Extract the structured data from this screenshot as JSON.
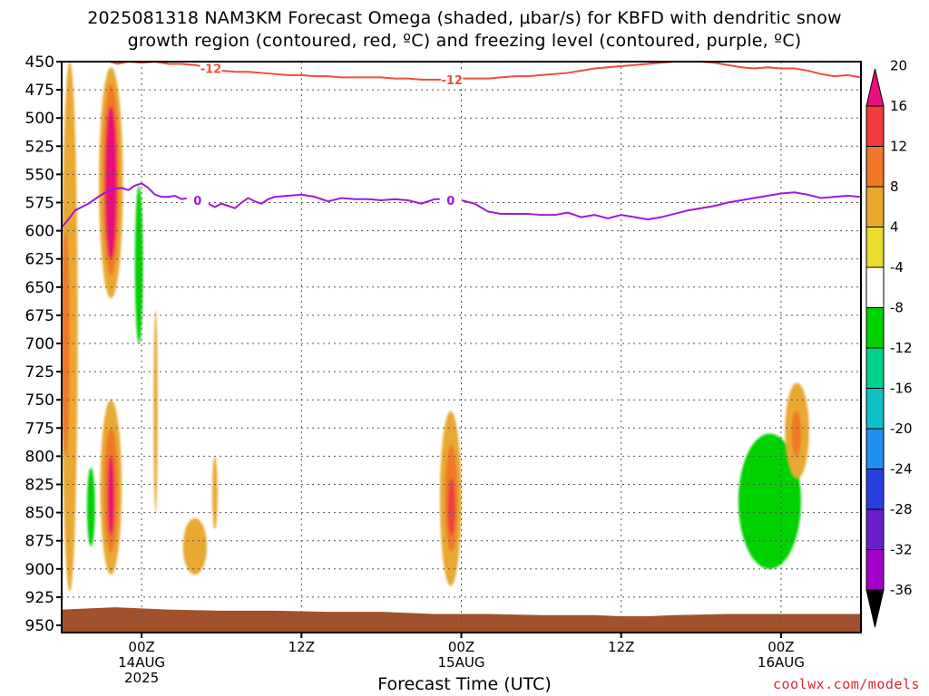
{
  "header": {
    "title_line1": "2025081318 NAM3KM Forecast Omega (shaded, µbar/s) for KBFD with dendritic snow",
    "title_line2": "growth region (contoured, red, ºC) and freezing level (contoured, purple, ºC)"
  },
  "footer": {
    "credit": "coolwx.com/models"
  },
  "colors": {
    "background": "#ffffff",
    "frame": "#000000",
    "grid": "#555555",
    "terrain": "#a0522d",
    "dgz_contour": "#f24b3c",
    "freezing_contour": "#9d19d8"
  },
  "chart_data": {
    "type": "heatmap",
    "title": "2025081318 NAM3KM Forecast Omega (shaded, µbar/s) for KBFD with dendritic snow growth region (contoured, red, ºC) and freezing level (contoured, purple, ºC)",
    "xlabel": "Forecast Time (UTC)",
    "ylabel": "",
    "x_unit": "hours since 2025-08-13 18Z",
    "xlim": [
      0,
      60
    ],
    "ylim": [
      450,
      950
    ],
    "y_scale": "pressure (inverted)",
    "grid": true,
    "y_ticks": [
      450,
      475,
      500,
      525,
      550,
      575,
      600,
      625,
      650,
      675,
      700,
      725,
      750,
      775,
      800,
      825,
      850,
      875,
      900,
      925,
      950
    ],
    "x_ticks": [
      {
        "x": 6,
        "lines": [
          "00Z",
          "14AUG",
          "2025"
        ]
      },
      {
        "x": 18,
        "lines": [
          "12Z"
        ]
      },
      {
        "x": 30,
        "lines": [
          "00Z",
          "15AUG"
        ]
      },
      {
        "x": 42,
        "lines": [
          "12Z"
        ]
      },
      {
        "x": 54,
        "lines": [
          "00Z",
          "16AUG"
        ]
      }
    ],
    "colorbar": {
      "boundaries": [
        -36,
        -32,
        -28,
        -24,
        -20,
        -16,
        -12,
        -8,
        -4,
        4,
        8,
        12,
        16,
        20
      ],
      "labels": [
        "-36",
        "-32",
        "-28",
        "-24",
        "-20",
        "-16",
        "-12",
        "-8",
        "-4",
        "4",
        "8",
        "12",
        "16",
        "20"
      ],
      "colors": [
        "#9b9b9b",
        "#a300c8",
        "#6a1ec8",
        "#2a3fe0",
        "#1f90f0",
        "#10c0c8",
        "#00d28c",
        "#00d200",
        "#ffffff",
        "#e8dc30",
        "#e8a830",
        "#f07828",
        "#f03c3c",
        "#e8107c"
      ],
      "extend": "both"
    },
    "omega_cells": [
      {
        "x": [
          0.0,
          1.2
        ],
        "p": [
          450,
          920
        ],
        "value": 5,
        "note": "yellow column"
      },
      {
        "x": [
          0.0,
          0.6
        ],
        "p": [
          600,
          800
        ],
        "value": 9
      },
      {
        "x": [
          2.8,
          4.6
        ],
        "p": [
          455,
          660
        ],
        "value": 6
      },
      {
        "x": [
          3.1,
          4.3
        ],
        "p": [
          470,
          640
        ],
        "value": 10
      },
      {
        "x": [
          3.3,
          4.1
        ],
        "p": [
          490,
          625
        ],
        "value": 18
      },
      {
        "x": [
          5.0,
          6.3
        ],
        "p": [
          452,
          790
        ],
        "value": -6
      },
      {
        "x": [
          5.5,
          6.1
        ],
        "p": [
          560,
          700
        ],
        "value": -10
      },
      {
        "x": [
          6.9,
          7.2
        ],
        "p": [
          670,
          850
        ],
        "value": 5
      },
      {
        "x": [
          1.6,
          2.8
        ],
        "p": [
          780,
          925
        ],
        "value": -6
      },
      {
        "x": [
          1.9,
          2.5
        ],
        "p": [
          810,
          880
        ],
        "value": -12
      },
      {
        "x": [
          2.9,
          4.5
        ],
        "p": [
          750,
          905
        ],
        "value": 6
      },
      {
        "x": [
          3.2,
          4.2
        ],
        "p": [
          775,
          885
        ],
        "value": 10
      },
      {
        "x": [
          3.5,
          3.9
        ],
        "p": [
          800,
          870
        ],
        "value": 17
      },
      {
        "x": [
          9.1,
          10.9
        ],
        "p": [
          855,
          905
        ],
        "value": 5
      },
      {
        "x": [
          11.3,
          11.7
        ],
        "p": [
          800,
          865
        ],
        "value": 5
      },
      {
        "x": [
          26.6,
          27.3
        ],
        "p": [
          870,
          915
        ],
        "value": -6
      },
      {
        "x": [
          28.4,
          30.0
        ],
        "p": [
          760,
          915
        ],
        "value": 6
      },
      {
        "x": [
          28.8,
          29.7
        ],
        "p": [
          790,
          885
        ],
        "value": 10
      },
      {
        "x": [
          29.0,
          29.5
        ],
        "p": [
          820,
          870
        ],
        "value": 13
      },
      {
        "x": [
          48.5,
          50.1
        ],
        "p": [
          790,
          880
        ],
        "value": -6
      },
      {
        "x": [
          50.2,
          56.3
        ],
        "p": [
          755,
          915
        ],
        "value": -6
      },
      {
        "x": [
          50.8,
          55.5
        ],
        "p": [
          780,
          900
        ],
        "value": -9
      },
      {
        "x": [
          54.3,
          56.1
        ],
        "p": [
          735,
          820
        ],
        "value": 5
      },
      {
        "x": [
          54.8,
          55.5
        ],
        "p": [
          760,
          800
        ],
        "value": 9
      }
    ],
    "dgz_contour": {
      "label": "-12",
      "x": [
        3.6,
        4.2,
        5.0,
        6.0,
        7.0,
        8.0,
        9.0,
        10.0,
        11.0,
        12.0,
        13.0,
        14.0,
        15.0,
        16.0,
        17.0,
        18.0,
        19.0,
        20.0,
        21.0,
        22.0,
        23.0,
        24.0,
        25.0,
        26.0,
        27.0,
        28.0,
        29.0,
        30.0,
        31.0,
        32.0,
        33.0,
        34.0,
        35.0,
        36.0,
        37.0,
        38.0,
        39.0,
        40.0,
        41.0,
        42.0,
        43.0,
        44.0,
        45.0,
        46.0,
        47.0,
        48.0,
        49.0,
        50.0,
        51.0,
        52.0,
        53.0,
        54.0,
        55.0,
        56.0,
        57.0,
        58.0,
        59.0,
        60.0
      ],
      "p": [
        450,
        452,
        450,
        451,
        450,
        452,
        452,
        453,
        455,
        458,
        459,
        459,
        460,
        461,
        462,
        462,
        463,
        463,
        464,
        464,
        464,
        464,
        465,
        465,
        466,
        466,
        466,
        465,
        465,
        465,
        464,
        463,
        463,
        462,
        461,
        460,
        458,
        456,
        455,
        454,
        453,
        452,
        451,
        450,
        450,
        450,
        451,
        453,
        455,
        456,
        455,
        456,
        456,
        458,
        461,
        463,
        462,
        464
      ],
      "label_positions": [
        {
          "x": 11.2,
          "p": 456
        },
        {
          "x": 29.3,
          "p": 466
        }
      ]
    },
    "freezing_contour": {
      "label": "0",
      "x": [
        0.0,
        0.5,
        1.0,
        2.0,
        3.0,
        3.8,
        4.5,
        5.0,
        5.5,
        6.0,
        6.5,
        7.0,
        7.5,
        8.0,
        8.5,
        9.0,
        9.5,
        10.0,
        10.5,
        11.0,
        11.5,
        12.0,
        12.5,
        13.0,
        13.5,
        14.0,
        14.5,
        15.0,
        15.5,
        16.0,
        17.0,
        18.0,
        19.0,
        20.0,
        21.0,
        22.0,
        23.0,
        24.0,
        25.0,
        26.0,
        27.0,
        28.0,
        29.0,
        30.0,
        31.0,
        32.0,
        33.0,
        34.0,
        35.0,
        36.0,
        37.0,
        38.0,
        39.0,
        40.0,
        41.0,
        42.0,
        43.0,
        44.0,
        45.0,
        46.0,
        47.0,
        48.0,
        49.0,
        50.0,
        51.0,
        52.0,
        53.0,
        54.0,
        55.0,
        56.0,
        57.0,
        58.0,
        59.0,
        60.0
      ],
      "p": [
        597,
        590,
        582,
        576,
        568,
        563,
        562,
        564,
        560,
        558,
        562,
        568,
        570,
        570,
        569,
        572,
        571,
        570,
        574,
        576,
        579,
        576,
        578,
        580,
        575,
        571,
        574,
        576,
        572,
        570,
        569,
        568,
        570,
        574,
        571,
        572,
        572,
        573,
        572,
        573,
        576,
        572,
        572,
        573,
        576,
        583,
        585,
        585,
        585,
        586,
        586,
        584,
        588,
        586,
        589,
        586,
        588,
        590,
        588,
        585,
        582,
        580,
        578,
        575,
        573,
        571,
        569,
        567,
        566,
        568,
        571,
        570,
        569,
        570
      ],
      "label_positions": [
        {
          "x": 10.2,
          "p": 573
        },
        {
          "x": 29.2,
          "p": 573
        }
      ]
    },
    "terrain": {
      "x": [
        0,
        4,
        8,
        12,
        16,
        20,
        24,
        28,
        32,
        36,
        40,
        42,
        44,
        46,
        50,
        54,
        58,
        60
      ],
      "p": [
        936,
        934,
        936,
        937,
        937,
        938,
        938,
        940,
        940,
        941,
        941,
        942,
        942,
        941,
        940,
        940,
        940,
        940
      ]
    }
  }
}
